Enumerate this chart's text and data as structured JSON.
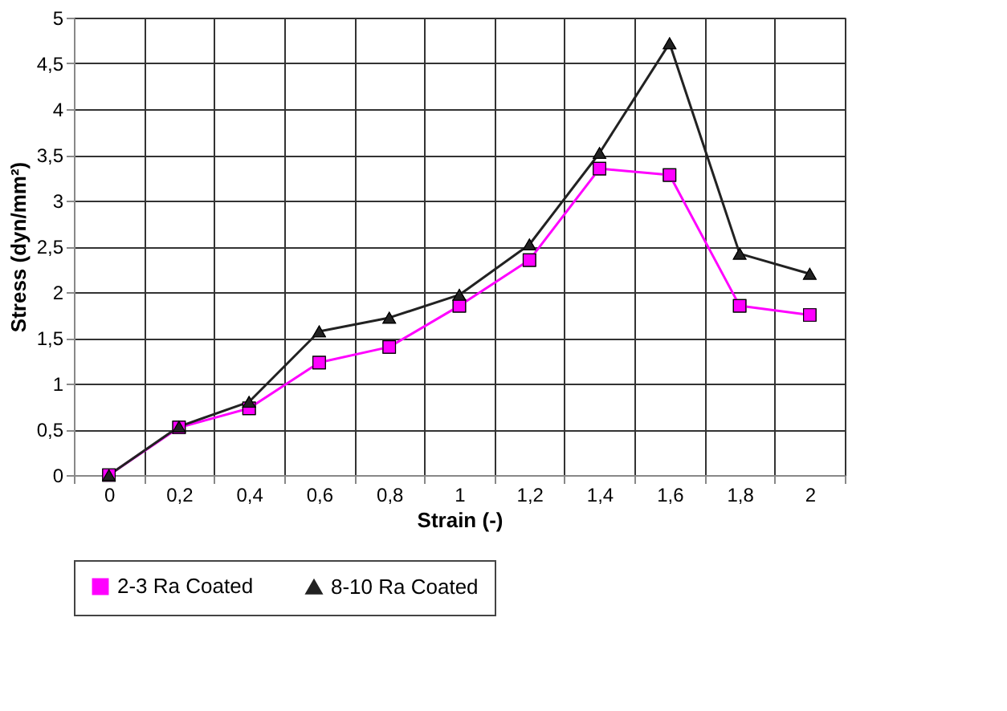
{
  "chart_data": {
    "type": "line",
    "xlabel": "Strain (-)",
    "ylabel": "Stress (dyn/mm²)",
    "categories": [
      "0",
      "0,2",
      "0,4",
      "0,6",
      "0,8",
      "1",
      "1,2",
      "1,4",
      "1,6",
      "1,8",
      "2"
    ],
    "series": [
      {
        "name": "2-3 Ra Coated",
        "color": "#ff00ff",
        "marker": "square",
        "values": [
          0,
          0.52,
          0.73,
          1.23,
          1.4,
          1.85,
          2.35,
          3.35,
          3.28,
          1.85,
          1.75
        ]
      },
      {
        "name": "8-10 Ra Coated",
        "color": "#222222",
        "marker": "triangle",
        "values": [
          0,
          0.53,
          0.8,
          1.57,
          1.72,
          1.97,
          2.52,
          3.52,
          4.72,
          2.42,
          2.2
        ]
      }
    ],
    "ylim": [
      0,
      5
    ],
    "yticks": [
      0,
      {
        "value": 0.5,
        "label": "0,5"
      },
      1,
      {
        "value": 1.5,
        "label": "1,5"
      },
      2,
      {
        "value": 2.5,
        "label": "2,5"
      },
      3,
      {
        "value": 3.5,
        "label": "3,5"
      },
      4,
      {
        "value": 4.5,
        "label": "4,5"
      },
      5
    ],
    "grid": true,
    "legend": "bottom",
    "line_style": "solid"
  }
}
